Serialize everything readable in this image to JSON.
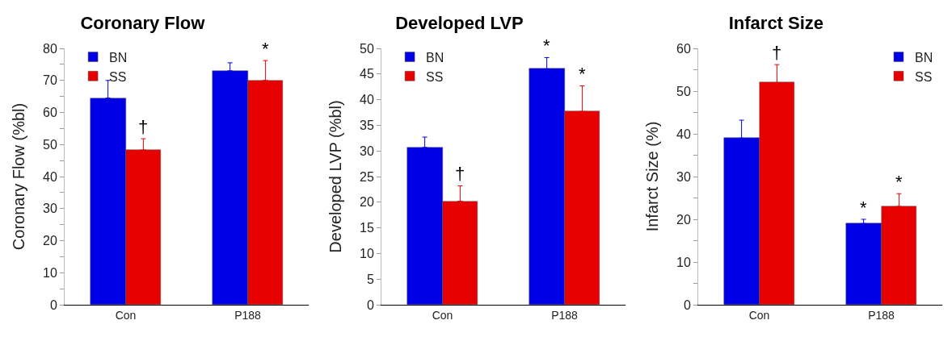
{
  "chart_data": [
    {
      "type": "bar",
      "title": "Coronary Flow",
      "ylabel": "Coronary Flow (%bl)",
      "categories": [
        "Con",
        "P188"
      ],
      "series": [
        {
          "name": "BN",
          "color": "#0000e6",
          "values": [
            64.5,
            73
          ],
          "errors": [
            5.5,
            2.5
          ]
        },
        {
          "name": "SS",
          "color": "#e60000",
          "values": [
            48.3,
            70
          ],
          "errors": [
            3.5,
            6.2
          ]
        }
      ],
      "ylim": [
        0,
        80
      ],
      "yticks": [
        0,
        {
          "value": 5,
          "label": null
        },
        10,
        {
          "value": 15,
          "label": null
        },
        20,
        {
          "value": 25,
          "label": null
        },
        30,
        {
          "value": 35,
          "label": null
        },
        40,
        {
          "value": 45,
          "label": null
        },
        50,
        {
          "value": 55,
          "label": null
        },
        60,
        {
          "value": 65,
          "label": null
        },
        70,
        {
          "value": 75,
          "label": null
        },
        80
      ],
      "grid": false,
      "legend": "top left",
      "annotations": [
        {
          "text": "†",
          "x": "Con",
          "y": 48.3
        },
        {
          "text": "*",
          "x": "P188",
          "y": 70
        }
      ]
    },
    {
      "type": "bar",
      "title": "Developed LVP",
      "ylabel": "Developed LVP (%bl)",
      "categories": [
        "Con",
        "P188"
      ],
      "series": [
        {
          "name": "BN",
          "color": "#0000e6",
          "values": [
            30.7,
            46
          ],
          "errors": [
            2,
            2.2
          ]
        },
        {
          "name": "SS",
          "color": "#e60000",
          "values": [
            20.2,
            37.7
          ],
          "errors": [
            3,
            5
          ]
        }
      ],
      "ylim": [
        0,
        50
      ],
      "yticks": [
        0,
        5,
        10,
        15,
        20,
        25,
        30,
        35,
        40,
        45,
        50
      ],
      "grid": false,
      "legend": "top left",
      "annotations": [
        {
          "text": "†",
          "x": "Con",
          "y": 20.2
        },
        {
          "text": "*",
          "x": "P188",
          "y": 37.7
        },
        {
          "text": "*",
          "x": "P188",
          "y": 46
        }
      ]
    },
    {
      "type": "bar",
      "title": "Infarct Size",
      "ylabel": "Infarct Size (%)",
      "categories": [
        "Con",
        "P188"
      ],
      "series": [
        {
          "name": "BN",
          "color": "#0000e6",
          "values": [
            39,
            19
          ],
          "errors": [
            4.2,
            1
          ]
        },
        {
          "name": "SS",
          "color": "#e60000",
          "values": [
            52,
            23
          ],
          "errors": [
            4.2,
            3
          ]
        }
      ],
      "ylim": [
        0,
        60
      ],
      "yticks": [
        0,
        {
          "value": 5,
          "label": null
        },
        10,
        {
          "value": 15,
          "label": null
        },
        20,
        {
          "value": 25,
          "label": null
        },
        30,
        {
          "value": 35,
          "label": null
        },
        40,
        {
          "value": 45,
          "label": null
        },
        50,
        {
          "value": 55,
          "label": null
        },
        60
      ],
      "grid": false,
      "legend": "top right",
      "annotations": [
        {
          "text": "†",
          "x": "Con",
          "y": 52
        },
        {
          "text": "*",
          "x": "P188",
          "y": 19
        },
        {
          "text": "*",
          "x": "P188",
          "y": 23
        }
      ]
    }
  ]
}
